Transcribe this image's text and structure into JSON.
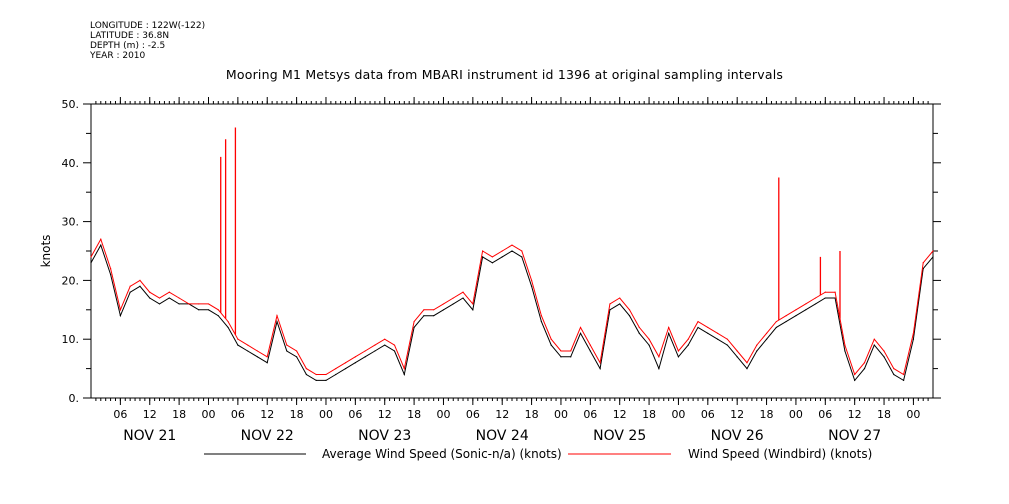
{
  "header": {
    "longitude": "LONGITUDE : 122W(-122)",
    "latitude": "LATITUDE : 36.8N",
    "depth": "DEPTH (m) : -2.5",
    "year": "YEAR : 2010"
  },
  "chart_data": {
    "type": "line",
    "title": "Mooring M1 Metsys data from MBARI instrument id 1396 at original sampling intervals",
    "ylabel": "knots",
    "ylim": [
      0,
      50
    ],
    "yticks": [
      "0.",
      "10.",
      "20.",
      "30.",
      "40.",
      "50."
    ],
    "xlim_hours": [
      0,
      172
    ],
    "xtick_labels": [
      "06",
      "12",
      "18",
      "00",
      "06",
      "12",
      "18",
      "00",
      "06",
      "12",
      "18",
      "00",
      "06",
      "12",
      "18",
      "00",
      "06",
      "12",
      "18",
      "00",
      "06",
      "12",
      "18",
      "00",
      "06",
      "12",
      "18",
      "00"
    ],
    "day_labels": [
      "NOV 21",
      "NOV 22",
      "NOV 23",
      "NOV 24",
      "NOV 25",
      "NOV 26",
      "NOV 27"
    ],
    "series": [
      {
        "name": "Average Wind Speed (Sonic-n/a) (knots)",
        "color": "#000000",
        "x": [
          0,
          2,
          4,
          6,
          8,
          10,
          12,
          14,
          16,
          18,
          20,
          22,
          24,
          26,
          28,
          30,
          32,
          34,
          36,
          38,
          40,
          42,
          44,
          46,
          48,
          50,
          52,
          54,
          56,
          58,
          60,
          62,
          64,
          66,
          68,
          70,
          72,
          74,
          76,
          78,
          80,
          82,
          84,
          86,
          88,
          90,
          92,
          94,
          96,
          98,
          100,
          102,
          104,
          106,
          108,
          110,
          112,
          114,
          116,
          118,
          120,
          122,
          124,
          126,
          128,
          130,
          132,
          134,
          136,
          138,
          140,
          142,
          144,
          146,
          148,
          150,
          152,
          154,
          156,
          158,
          160,
          162,
          164,
          166,
          168,
          170,
          172
        ],
        "values": [
          23,
          26,
          21,
          14,
          18,
          19,
          17,
          16,
          17,
          16,
          16,
          15,
          15,
          14,
          12,
          9,
          8,
          7,
          6,
          13,
          8,
          7,
          4,
          3,
          3,
          4,
          5,
          6,
          7,
          8,
          9,
          8,
          4,
          12,
          14,
          14,
          15,
          16,
          17,
          15,
          24,
          23,
          24,
          25,
          24,
          19,
          13,
          9,
          7,
          7,
          11,
          8,
          5,
          15,
          16,
          14,
          11,
          9,
          5,
          11,
          7,
          9,
          12,
          11,
          10,
          9,
          7,
          5,
          8,
          10,
          12,
          13,
          14,
          15,
          16,
          17,
          17,
          8,
          3,
          5,
          9,
          7,
          4,
          3,
          10,
          22,
          24
        ]
      },
      {
        "name": "Wind Speed (Windbird) (knots)",
        "color": "#ff0000",
        "x": [
          0,
          2,
          4,
          6,
          8,
          10,
          12,
          14,
          16,
          18,
          20,
          22,
          24,
          26,
          28,
          30,
          32,
          34,
          36,
          38,
          40,
          42,
          44,
          46,
          48,
          50,
          52,
          54,
          56,
          58,
          60,
          62,
          64,
          66,
          68,
          70,
          72,
          74,
          76,
          78,
          80,
          82,
          84,
          86,
          88,
          90,
          92,
          94,
          96,
          98,
          100,
          102,
          104,
          106,
          108,
          110,
          112,
          114,
          116,
          118,
          120,
          122,
          124,
          126,
          128,
          130,
          132,
          134,
          136,
          138,
          140,
          142,
          144,
          146,
          148,
          150,
          152,
          154,
          156,
          158,
          160,
          162,
          164,
          166,
          168,
          170,
          172
        ],
        "values": [
          24,
          27,
          22,
          15,
          19,
          20,
          18,
          17,
          18,
          17,
          16,
          16,
          16,
          15,
          13,
          10,
          9,
          8,
          7,
          14,
          9,
          8,
          5,
          4,
          4,
          5,
          6,
          7,
          8,
          9,
          10,
          9,
          5,
          13,
          15,
          15,
          16,
          17,
          18,
          16,
          25,
          24,
          25,
          26,
          25,
          20,
          14,
          10,
          8,
          8,
          12,
          9,
          6,
          16,
          17,
          15,
          12,
          10,
          7,
          12,
          8,
          10,
          13,
          12,
          11,
          10,
          8,
          6,
          9,
          11,
          13,
          14,
          15,
          16,
          17,
          18,
          18,
          9,
          4,
          6,
          10,
          8,
          5,
          4,
          11,
          23,
          25
        ]
      }
    ],
    "spikes": [
      {
        "x": 26.5,
        "value": 41
      },
      {
        "x": 27.5,
        "value": 44
      },
      {
        "x": 29.5,
        "value": 46
      },
      {
        "x": 140.5,
        "value": 37.5
      },
      {
        "x": 149,
        "value": 24
      },
      {
        "x": 153,
        "value": 25
      }
    ],
    "legend_placement": "bottom",
    "grid": false
  }
}
